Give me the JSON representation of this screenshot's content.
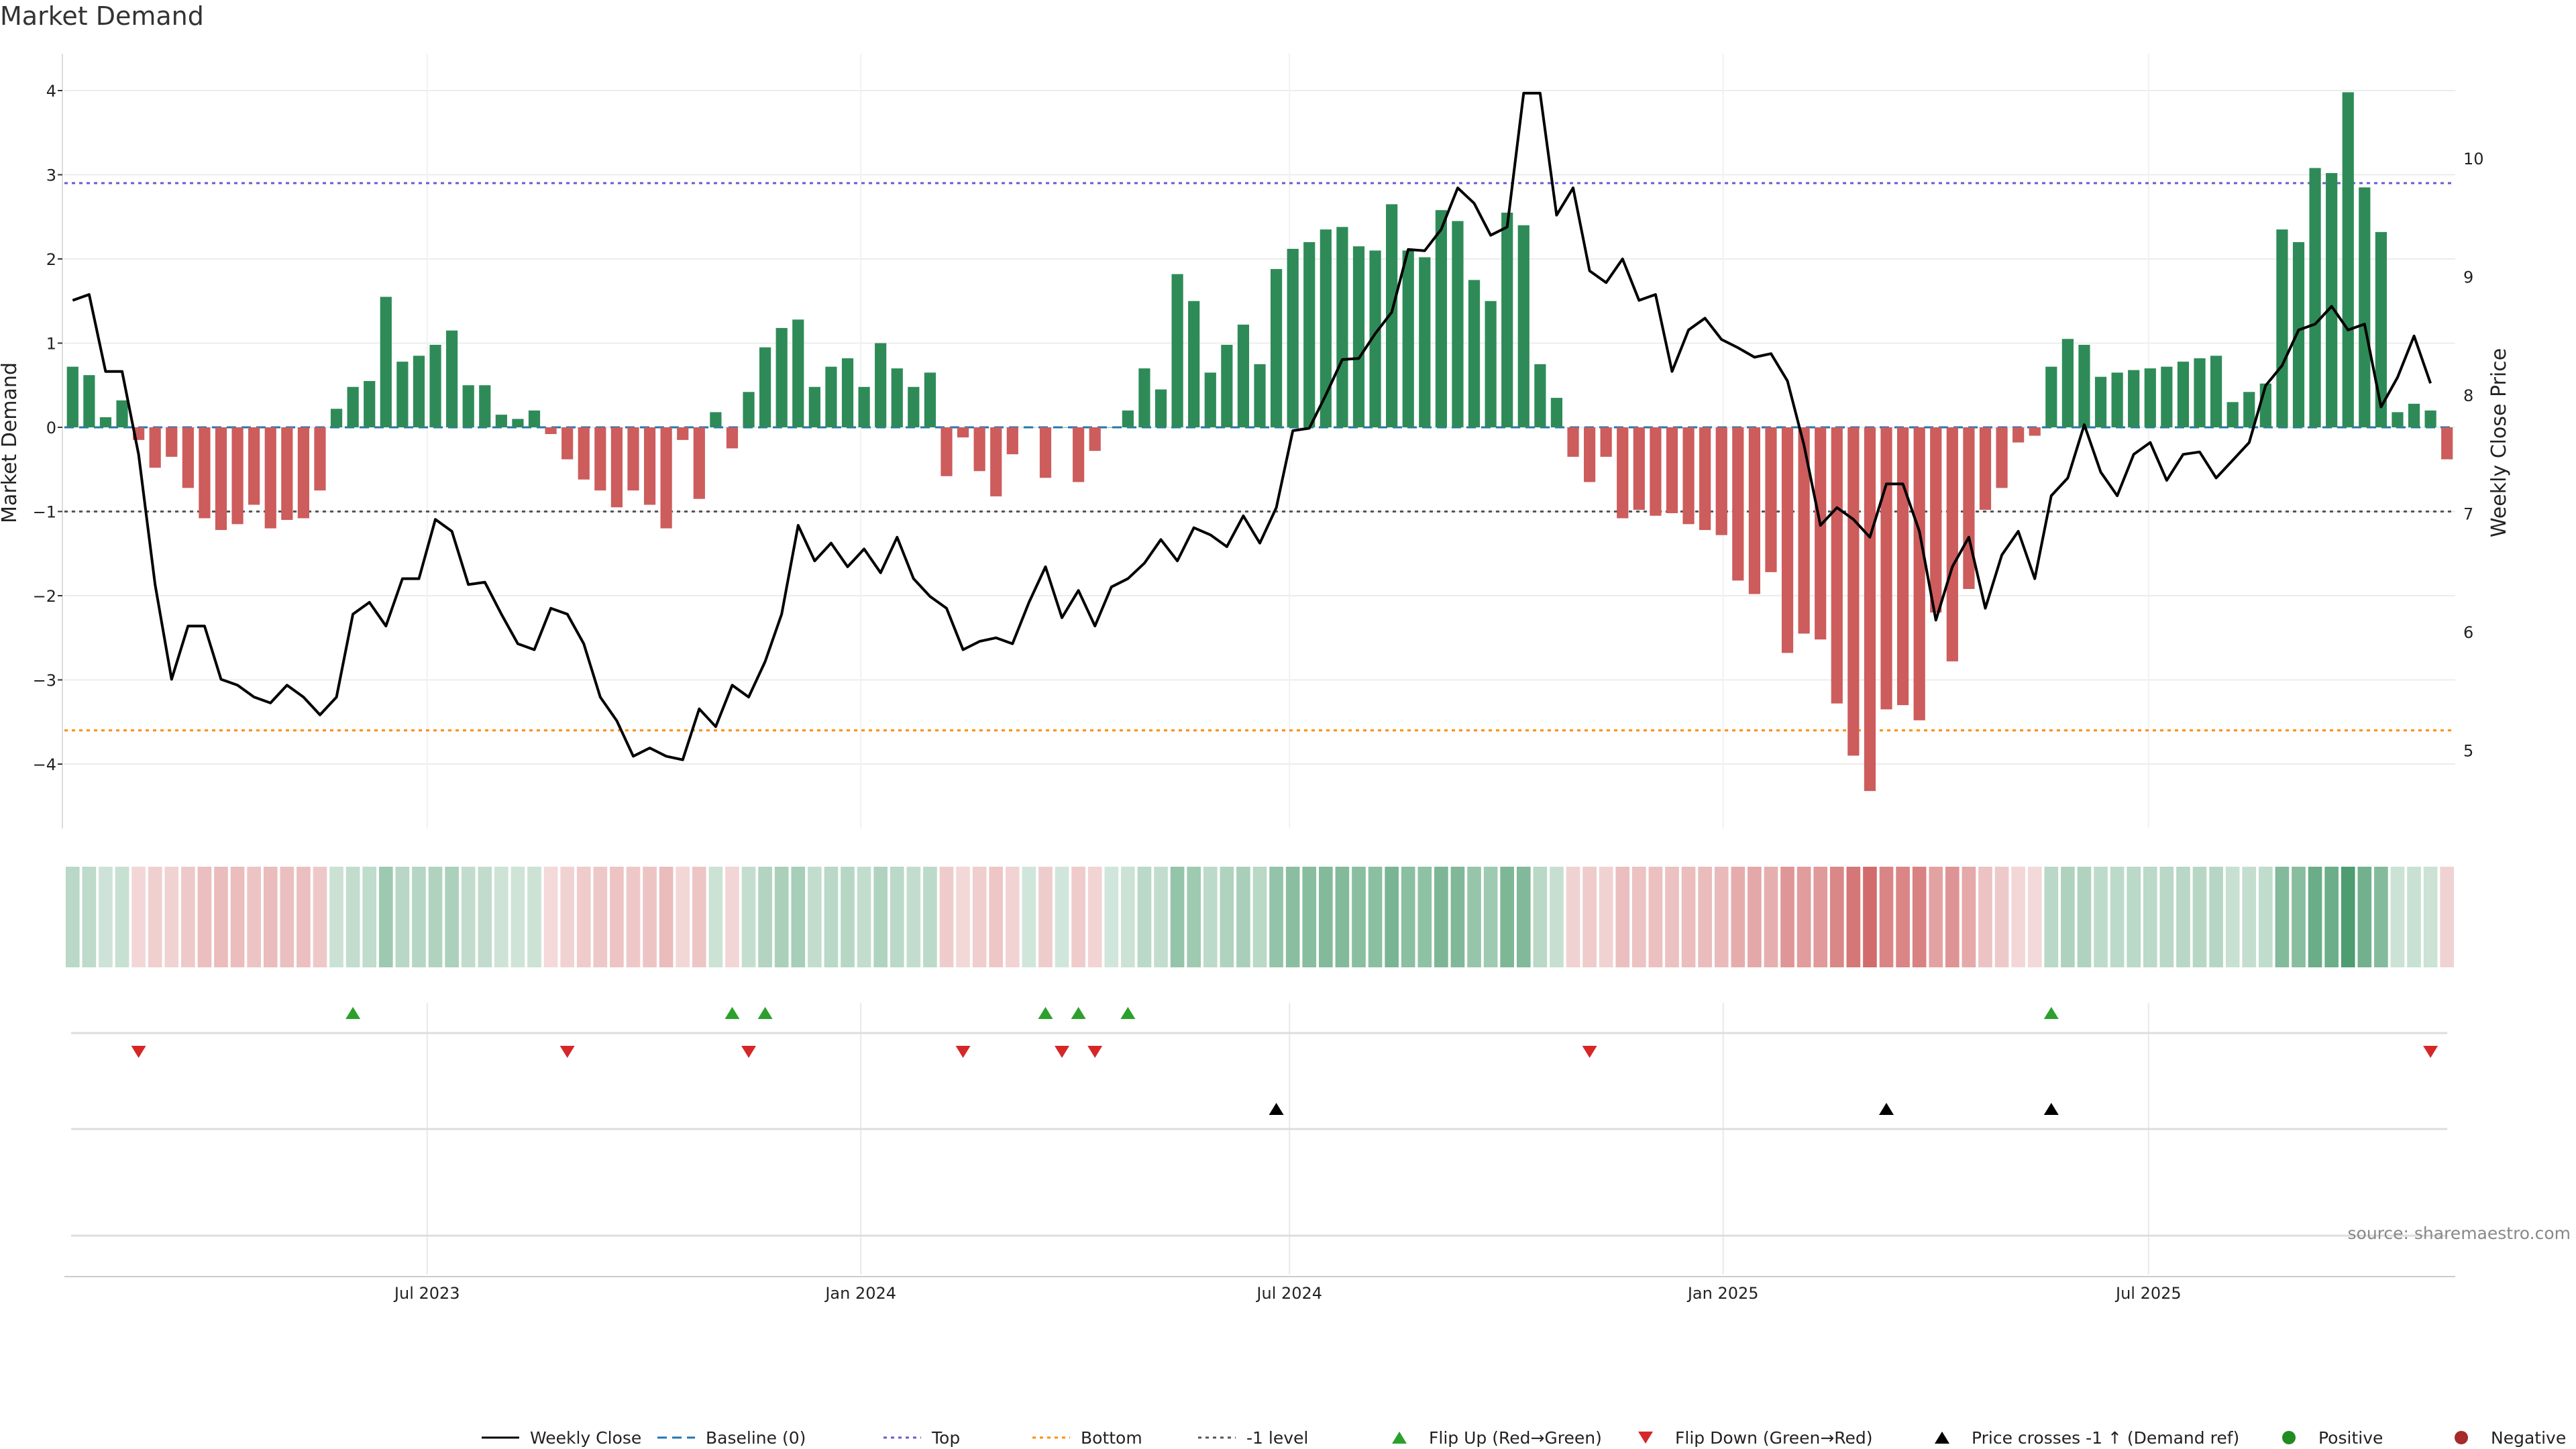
{
  "title": "Market Demand",
  "source_note": "source: sharemaestro.com",
  "colors": {
    "positive_bar": "#2e8b57",
    "negative_bar": "#cd5c5c",
    "price_line": "#000000",
    "baseline": "#1f77b4",
    "top_line": "#6a5acd",
    "bottom_line": "#ff8c00",
    "minus1_line": "#555555",
    "flip_up": "#2ca02c",
    "flip_down": "#d62728",
    "cross_marker": "#000000",
    "heat_positive": "#2e8b57",
    "heat_negative": "#cd5c5c"
  },
  "legend": [
    {
      "label": "Weekly Close",
      "kind": "line-solid",
      "color": "#000000"
    },
    {
      "label": "Baseline (0)",
      "kind": "line-dashed",
      "color": "#1f77b4"
    },
    {
      "label": "Top",
      "kind": "line-dotted",
      "color": "#6a5acd"
    },
    {
      "label": "Bottom",
      "kind": "line-dotted",
      "color": "#ff8c00"
    },
    {
      "label": "-1 level",
      "kind": "line-dotted",
      "color": "#555555"
    },
    {
      "label": "Flip Up (Red→Green)",
      "kind": "tri-up",
      "color": "#2ca02c"
    },
    {
      "label": "Flip Down (Green→Red)",
      "kind": "tri-down",
      "color": "#d62728"
    },
    {
      "label": "Price crosses -1 ↑ (Demand ref)",
      "kind": "tri-up",
      "color": "#000000"
    },
    {
      "label": "Positive",
      "kind": "dot",
      "color": "#228b22"
    },
    {
      "label": "Negative",
      "kind": "dot",
      "color": "#a52a2a"
    }
  ],
  "chart_data": {
    "type": "bar",
    "title": "Market Demand",
    "ylabel": "Market Demand",
    "y2label": "Weekly Close Price",
    "ylim": [
      -4.8,
      4.2
    ],
    "y_ticks": [
      4,
      3,
      2,
      1,
      0,
      -1,
      -2,
      -3,
      -4
    ],
    "y_tick_labels": [
      "4",
      "3",
      "2",
      "1",
      "0",
      "−1",
      "−2",
      "−3",
      "−4"
    ],
    "y2lim": [
      4.3,
      10.8
    ],
    "y2_ticks": [
      10,
      9,
      8,
      7,
      6,
      5
    ],
    "y2_tick_labels": [
      "10",
      "9",
      "8",
      "7",
      "6",
      "5"
    ],
    "x_tick_labels": [
      "Jul 2023",
      "Jan 2024",
      "Jul 2024",
      "Jan 2025",
      "Jul 2025"
    ],
    "x_tick_week_index": [
      21.5,
      47.8,
      73.8,
      100.1,
      125.9
    ],
    "reference_lines": {
      "baseline": 0,
      "top": 2.9,
      "bottom": -3.6,
      "minus1": -1
    },
    "grid": true,
    "series": [
      {
        "name": "Market Demand",
        "values": [
          0.72,
          0.62,
          0.12,
          0.32,
          -0.15,
          -0.48,
          -0.35,
          -0.72,
          -1.08,
          -1.22,
          -1.15,
          -0.92,
          -1.2,
          -1.1,
          -1.08,
          -0.75,
          0.22,
          0.48,
          0.55,
          1.55,
          0.78,
          0.85,
          0.98,
          1.15,
          0.5,
          0.5,
          0.15,
          0.1,
          0.2,
          -0.08,
          -0.38,
          -0.62,
          -0.75,
          -0.95,
          -0.75,
          -0.92,
          -1.2,
          -0.15,
          -0.85,
          0.18,
          -0.25,
          0.42,
          0.95,
          1.18,
          1.28,
          0.48,
          0.72,
          0.82,
          0.48,
          1.0,
          0.7,
          0.48,
          0.65,
          -0.58,
          -0.12,
          -0.52,
          -0.82,
          -0.32,
          0.0,
          -0.6,
          0.0,
          -0.65,
          -0.28,
          0.0,
          0.2,
          0.7,
          0.45,
          1.82,
          1.5,
          0.65,
          0.98,
          1.22,
          0.75,
          1.88,
          2.12,
          2.2,
          2.35,
          2.38,
          2.15,
          2.1,
          2.65,
          2.1,
          2.02,
          2.58,
          2.45,
          1.75,
          1.5,
          2.55,
          2.4,
          0.75,
          0.35,
          -0.35,
          -0.65,
          -0.35,
          -1.08,
          -0.98,
          -1.05,
          -1.02,
          -1.15,
          -1.22,
          -1.28,
          -1.82,
          -1.98,
          -1.72,
          -2.68,
          -2.45,
          -2.52,
          -3.28,
          -3.9,
          -4.32,
          -3.35,
          -3.3,
          -3.48,
          -2.2,
          -2.78,
          -1.92,
          -0.98,
          -0.72,
          -0.18,
          -0.1,
          0.72,
          1.05,
          0.98,
          0.6,
          0.65,
          0.68,
          0.7,
          0.72,
          0.78,
          0.82,
          0.85,
          0.3,
          0.42,
          0.52,
          2.35,
          2.2,
          3.08,
          3.02,
          3.98,
          2.85,
          2.32,
          0.18,
          0.28,
          0.2,
          -0.38
        ]
      },
      {
        "name": "Weekly Close",
        "axis": "right",
        "values": [
          8.8,
          8.85,
          8.2,
          8.2,
          7.5,
          6.4,
          5.6,
          6.05,
          6.05,
          5.6,
          5.55,
          5.45,
          5.4,
          5.55,
          5.45,
          5.3,
          5.45,
          6.15,
          6.25,
          6.05,
          6.45,
          6.45,
          6.95,
          6.85,
          6.4,
          6.42,
          6.15,
          5.9,
          5.85,
          6.2,
          6.15,
          5.9,
          5.45,
          5.25,
          4.95,
          5.02,
          4.95,
          4.92,
          5.35,
          5.2,
          5.55,
          5.45,
          5.75,
          6.15,
          6.9,
          6.6,
          6.75,
          6.55,
          6.7,
          6.5,
          6.8,
          6.45,
          6.3,
          6.2,
          5.85,
          5.92,
          5.95,
          5.9,
          6.25,
          6.55,
          6.12,
          6.35,
          6.05,
          6.38,
          6.45,
          6.58,
          6.78,
          6.6,
          6.88,
          6.82,
          6.72,
          6.98,
          6.75,
          7.05,
          7.7,
          7.72,
          8.0,
          8.3,
          8.31,
          8.52,
          8.7,
          9.23,
          9.22,
          9.4,
          9.75,
          9.62,
          9.35,
          9.42,
          10.55,
          10.55,
          9.52,
          9.75,
          9.05,
          8.95,
          9.15,
          8.8,
          8.85,
          8.2,
          8.55,
          8.65,
          8.47,
          8.4,
          8.32,
          8.35,
          8.12,
          7.58,
          6.9,
          7.05,
          6.95,
          6.8,
          7.25,
          7.25,
          6.85,
          6.1,
          6.55,
          6.8,
          6.2,
          6.65,
          6.85,
          6.45,
          7.15,
          7.3,
          7.75,
          7.35,
          7.15,
          7.5,
          7.6,
          7.28,
          7.5,
          7.52,
          7.3,
          7.45,
          7.6,
          8.08,
          8.25,
          8.55,
          8.6,
          8.75,
          8.55,
          8.6,
          7.9,
          8.15,
          8.5,
          8.1
        ]
      }
    ],
    "flip_up_week_index": [
      17,
      40,
      42,
      59,
      61,
      64,
      120
    ],
    "flip_down_week_index": [
      4,
      30,
      41,
      54,
      60,
      62,
      92,
      143
    ],
    "price_cross_week_index": [
      73,
      110,
      120
    ]
  }
}
